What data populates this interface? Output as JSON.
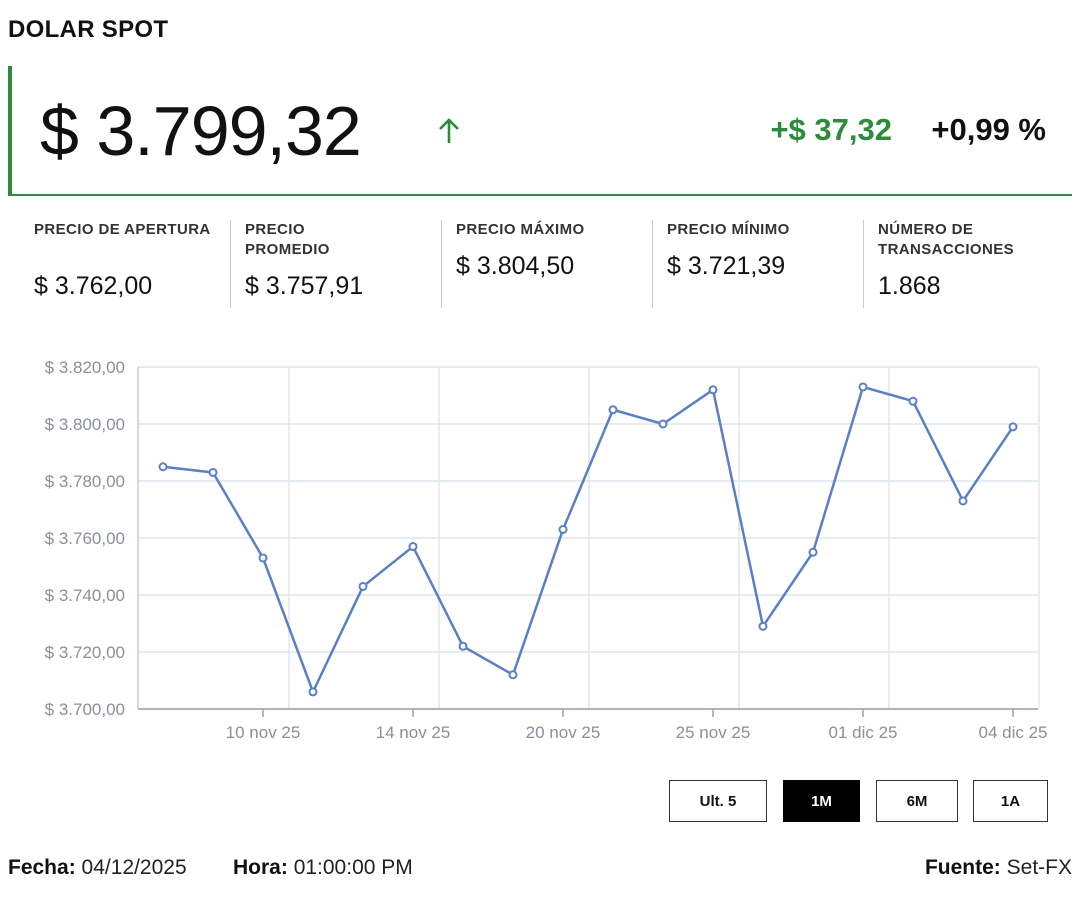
{
  "title": "DOLAR SPOT",
  "price": "$ 3.799,32",
  "change": "+$ 37,32",
  "change_pct": "+0,99 %",
  "colors": {
    "up": "#2e8b3e",
    "line": "#5b7fc4",
    "grid": "#dfe5ef"
  },
  "icons": {
    "trend": "arrow-up-icon"
  },
  "stats": [
    {
      "label": "PRECIO DE APERTURA",
      "value": "$ 3.762,00"
    },
    {
      "label": "PRECIO PROMEDIO",
      "value": "$ 3.757,91"
    },
    {
      "label": "PRECIO MÁXIMO",
      "value": "$ 3.804,50"
    },
    {
      "label": "PRECIO MÍNIMO",
      "value": "$ 3.721,39"
    },
    {
      "label": "NÚMERO DE TRANSACCIONES",
      "value": "1.868"
    }
  ],
  "chart_data": {
    "type": "line",
    "ylim": [
      3700,
      3820
    ],
    "yticks": [
      3820,
      3800,
      3780,
      3760,
      3740,
      3720,
      3700
    ],
    "ytick_labels": [
      "$ 3.820,00",
      "$ 3.800,00",
      "$ 3.780,00",
      "$ 3.760,00",
      "$ 3.740,00",
      "$ 3.720,00",
      "$ 3.700,00"
    ],
    "xtick_labels": [
      "10 nov 25",
      "14 nov 25",
      "20 nov 25",
      "25 nov 25",
      "01 dic 25",
      "04 dic 25"
    ],
    "xtick_index": [
      2,
      5,
      8,
      11,
      14,
      17
    ],
    "grid": true,
    "series": [
      {
        "values": [
          3785,
          3783,
          3753,
          3706,
          3743,
          3757,
          3722,
          3712,
          3763,
          3805,
          3800,
          3812,
          3729,
          3755,
          3813,
          3808,
          3773,
          3799
        ]
      }
    ]
  },
  "ranges": [
    "Ult. 5",
    "1M",
    "6M",
    "1A"
  ],
  "active_range": "1M",
  "footer": {
    "fecha_label": "Fecha:",
    "fecha": "04/12/2025",
    "hora_label": "Hora:",
    "hora": "01:00:00 PM",
    "fuente_label": "Fuente:",
    "fuente": "Set-FX"
  }
}
